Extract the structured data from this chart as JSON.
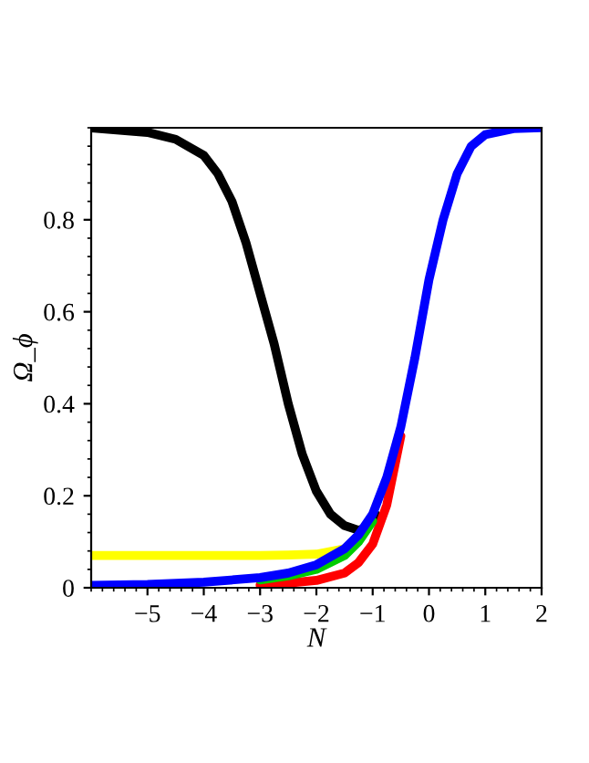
{
  "chart_data": {
    "type": "line",
    "xlabel": "N",
    "ylabel": "Ω_ϕ",
    "xlim": [
      -6,
      2
    ],
    "ylim": [
      0,
      1
    ],
    "xticks": [
      -5,
      -4,
      -3,
      -2,
      -1,
      0,
      1,
      2
    ],
    "yticks": [
      0,
      0.2,
      0.4,
      0.6,
      0.8
    ],
    "grid": false,
    "marker": "none",
    "line_style": "solid",
    "series": [
      {
        "color": "#000000",
        "x": [
          -6,
          -5,
          -4.5,
          -4,
          -3.75,
          -3.5,
          -3.25,
          -3,
          -2.75,
          -2.5,
          -2.25,
          -2,
          -1.75,
          -1.5,
          -1.25,
          -1.1,
          -0.95
        ],
        "values": [
          1.0,
          0.99,
          0.975,
          0.94,
          0.9,
          0.84,
          0.75,
          0.64,
          0.53,
          0.4,
          0.29,
          0.21,
          0.16,
          0.135,
          0.125,
          0.13,
          0.16
        ]
      },
      {
        "color": "#ffff00",
        "x": [
          -6,
          -5,
          -4,
          -3,
          -2.5,
          -2,
          -1.5
        ],
        "values": [
          0.07,
          0.07,
          0.07,
          0.07,
          0.071,
          0.073,
          0.085
        ]
      },
      {
        "color": "#ff0000",
        "x": [
          -3,
          -2.5,
          -2,
          -1.5,
          -1.25,
          -1,
          -0.75,
          -0.5
        ],
        "values": [
          0.006,
          0.01,
          0.016,
          0.032,
          0.055,
          0.095,
          0.18,
          0.33
        ]
      },
      {
        "color": "#00cc00",
        "x": [
          -3,
          -2.5,
          -2,
          -1.5,
          -1.25,
          -1
        ],
        "values": [
          0.017,
          0.026,
          0.04,
          0.07,
          0.1,
          0.145
        ]
      },
      {
        "color": "#0000ff",
        "x": [
          -6,
          -5,
          -4,
          -3,
          -2.5,
          -2,
          -1.5,
          -1.25,
          -1,
          -0.75,
          -0.5,
          -0.25,
          0,
          0.25,
          0.5,
          0.75,
          1,
          1.5,
          2
        ],
        "values": [
          0.005,
          0.007,
          0.012,
          0.022,
          0.032,
          0.05,
          0.085,
          0.115,
          0.16,
          0.24,
          0.35,
          0.5,
          0.67,
          0.8,
          0.9,
          0.96,
          0.985,
          0.998,
          1.0
        ]
      }
    ]
  }
}
